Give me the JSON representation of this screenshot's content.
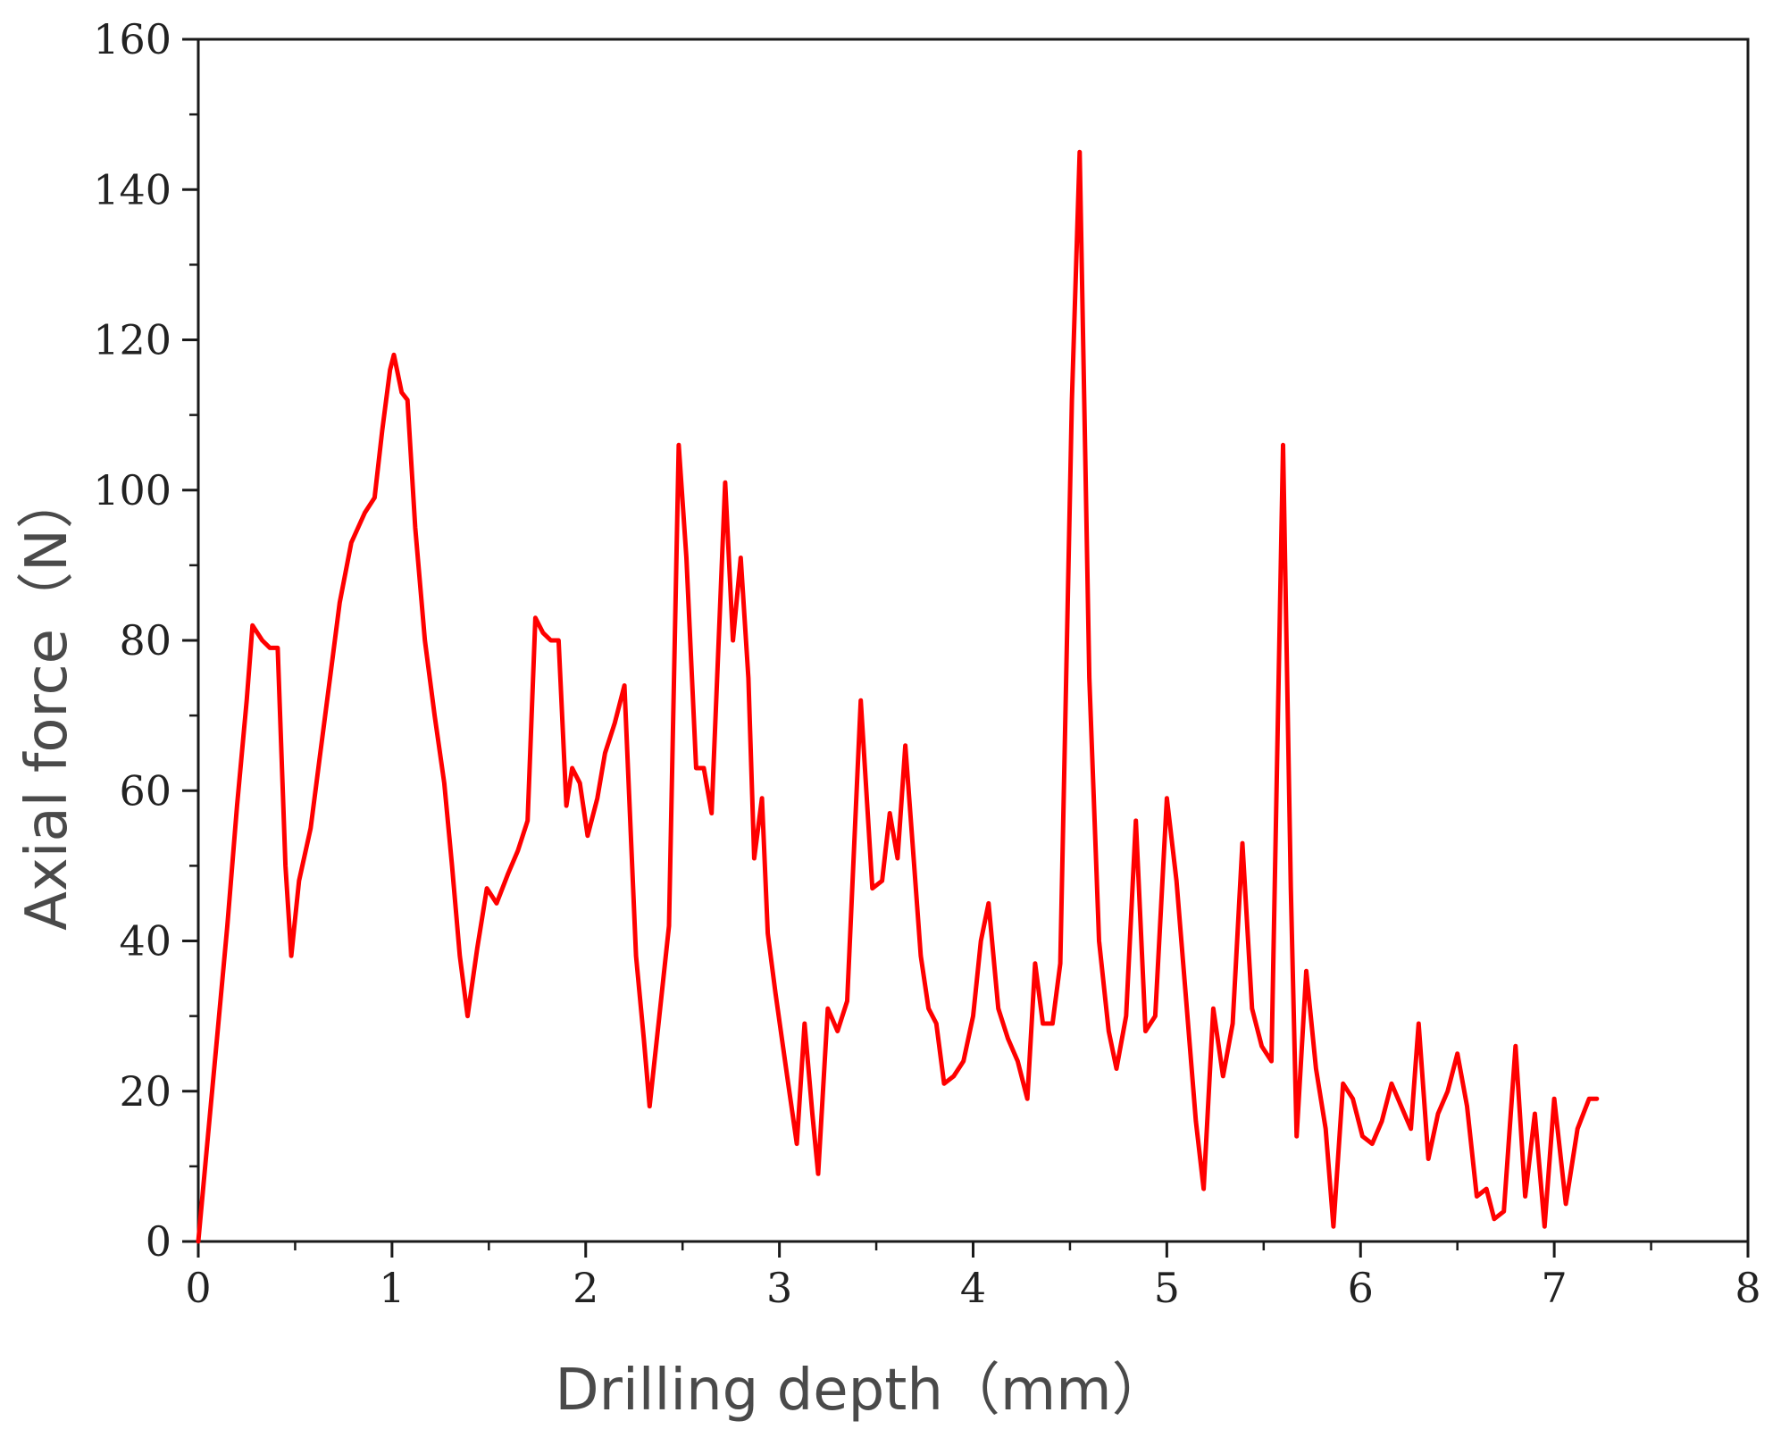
{
  "chart_data": {
    "type": "line",
    "title": "",
    "xlabel": "Drilling depth（mm）",
    "ylabel": "Axial force（N）",
    "xlim": [
      0,
      8
    ],
    "ylim": [
      0,
      160
    ],
    "xticks": [
      0,
      1,
      2,
      3,
      4,
      5,
      6,
      7,
      8
    ],
    "yticks": [
      0,
      20,
      40,
      60,
      80,
      100,
      120,
      140,
      160
    ],
    "x_minor_step": 0.5,
    "y_minor_step": 10,
    "grid": false,
    "legend": false,
    "series": [
      {
        "color": "#ff0000",
        "points": [
          [
            0.0,
            0
          ],
          [
            0.05,
            14
          ],
          [
            0.1,
            28
          ],
          [
            0.15,
            42
          ],
          [
            0.2,
            58
          ],
          [
            0.25,
            72
          ],
          [
            0.28,
            82
          ],
          [
            0.33,
            80
          ],
          [
            0.37,
            79
          ],
          [
            0.41,
            79
          ],
          [
            0.45,
            50
          ],
          [
            0.48,
            38
          ],
          [
            0.52,
            48
          ],
          [
            0.58,
            55
          ],
          [
            0.63,
            65
          ],
          [
            0.68,
            75
          ],
          [
            0.73,
            85
          ],
          [
            0.79,
            93
          ],
          [
            0.86,
            97
          ],
          [
            0.91,
            99
          ],
          [
            0.95,
            108
          ],
          [
            0.99,
            116
          ],
          [
            1.01,
            118
          ],
          [
            1.05,
            113
          ],
          [
            1.08,
            112
          ],
          [
            1.12,
            95
          ],
          [
            1.17,
            80
          ],
          [
            1.22,
            70
          ],
          [
            1.27,
            61
          ],
          [
            1.31,
            50
          ],
          [
            1.35,
            38
          ],
          [
            1.39,
            30
          ],
          [
            1.44,
            39
          ],
          [
            1.49,
            47
          ],
          [
            1.54,
            45
          ],
          [
            1.6,
            49
          ],
          [
            1.65,
            52
          ],
          [
            1.7,
            56
          ],
          [
            1.74,
            83
          ],
          [
            1.78,
            81
          ],
          [
            1.82,
            80
          ],
          [
            1.86,
            80
          ],
          [
            1.9,
            58
          ],
          [
            1.93,
            63
          ],
          [
            1.97,
            61
          ],
          [
            2.01,
            54
          ],
          [
            2.06,
            59
          ],
          [
            2.1,
            65
          ],
          [
            2.15,
            69
          ],
          [
            2.2,
            74
          ],
          [
            2.26,
            38
          ],
          [
            2.3,
            27
          ],
          [
            2.33,
            18
          ],
          [
            2.38,
            30
          ],
          [
            2.43,
            42
          ],
          [
            2.48,
            106
          ],
          [
            2.52,
            91
          ],
          [
            2.57,
            63
          ],
          [
            2.61,
            63
          ],
          [
            2.65,
            57
          ],
          [
            2.72,
            101
          ],
          [
            2.76,
            80
          ],
          [
            2.8,
            91
          ],
          [
            2.84,
            75
          ],
          [
            2.87,
            51
          ],
          [
            2.91,
            59
          ],
          [
            2.94,
            41
          ],
          [
            2.98,
            33
          ],
          [
            3.04,
            22
          ],
          [
            3.09,
            13
          ],
          [
            3.13,
            29
          ],
          [
            3.17,
            17
          ],
          [
            3.2,
            9
          ],
          [
            3.25,
            31
          ],
          [
            3.3,
            28
          ],
          [
            3.35,
            32
          ],
          [
            3.39,
            55
          ],
          [
            3.42,
            72
          ],
          [
            3.48,
            47
          ],
          [
            3.53,
            48
          ],
          [
            3.57,
            57
          ],
          [
            3.61,
            51
          ],
          [
            3.65,
            66
          ],
          [
            3.69,
            52
          ],
          [
            3.73,
            38
          ],
          [
            3.77,
            31
          ],
          [
            3.81,
            29
          ],
          [
            3.85,
            21
          ],
          [
            3.9,
            22
          ],
          [
            3.95,
            24
          ],
          [
            4.0,
            30
          ],
          [
            4.04,
            40
          ],
          [
            4.08,
            45
          ],
          [
            4.13,
            31
          ],
          [
            4.18,
            27
          ],
          [
            4.23,
            24
          ],
          [
            4.28,
            19
          ],
          [
            4.32,
            37
          ],
          [
            4.36,
            29
          ],
          [
            4.41,
            29
          ],
          [
            4.45,
            37
          ],
          [
            4.51,
            112
          ],
          [
            4.55,
            145
          ],
          [
            4.6,
            75
          ],
          [
            4.65,
            40
          ],
          [
            4.7,
            28
          ],
          [
            4.74,
            23
          ],
          [
            4.79,
            30
          ],
          [
            4.84,
            56
          ],
          [
            4.89,
            28
          ],
          [
            4.94,
            30
          ],
          [
            5.0,
            59
          ],
          [
            5.05,
            48
          ],
          [
            5.1,
            32
          ],
          [
            5.15,
            16
          ],
          [
            5.19,
            7
          ],
          [
            5.24,
            31
          ],
          [
            5.29,
            22
          ],
          [
            5.34,
            29
          ],
          [
            5.39,
            53
          ],
          [
            5.44,
            31
          ],
          [
            5.49,
            26
          ],
          [
            5.54,
            24
          ],
          [
            5.6,
            106
          ],
          [
            5.64,
            47
          ],
          [
            5.67,
            14
          ],
          [
            5.72,
            36
          ],
          [
            5.77,
            23
          ],
          [
            5.82,
            15
          ],
          [
            5.86,
            2
          ],
          [
            5.91,
            21
          ],
          [
            5.96,
            19
          ],
          [
            6.01,
            14
          ],
          [
            6.06,
            13
          ],
          [
            6.11,
            16
          ],
          [
            6.16,
            21
          ],
          [
            6.21,
            18
          ],
          [
            6.26,
            15
          ],
          [
            6.3,
            29
          ],
          [
            6.35,
            11
          ],
          [
            6.4,
            17
          ],
          [
            6.45,
            20
          ],
          [
            6.5,
            25
          ],
          [
            6.55,
            18
          ],
          [
            6.6,
            6
          ],
          [
            6.65,
            7
          ],
          [
            6.69,
            3
          ],
          [
            6.74,
            4
          ],
          [
            6.8,
            26
          ],
          [
            6.85,
            6
          ],
          [
            6.9,
            17
          ],
          [
            6.95,
            2
          ],
          [
            7.0,
            19
          ],
          [
            7.06,
            5
          ],
          [
            7.12,
            15
          ],
          [
            7.18,
            19
          ],
          [
            7.22,
            19
          ]
        ]
      }
    ]
  }
}
